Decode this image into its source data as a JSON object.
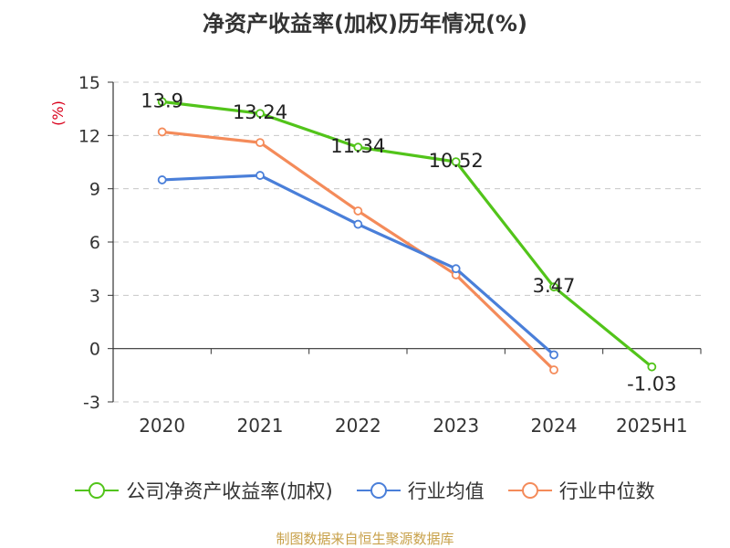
{
  "chart_data": {
    "type": "line",
    "title": "净资产收益率(加权)历年情况(%)",
    "ylabel": "(%)",
    "xlabel": "",
    "categories": [
      "2020",
      "2021",
      "2022",
      "2023",
      "2024",
      "2025H1"
    ],
    "ylim": [
      -3,
      15
    ],
    "yticks": [
      -3,
      0,
      3,
      6,
      9,
      12,
      15
    ],
    "grid": true,
    "legend_position": "bottom",
    "series": [
      {
        "name": "公司净资产收益率(加权)",
        "color": "#52c41a",
        "values": [
          13.9,
          13.24,
          11.34,
          10.52,
          3.47,
          -1.03
        ],
        "labels": [
          "13.9",
          "13.24",
          "11.34",
          "10.52",
          "3.47",
          "-1.03"
        ]
      },
      {
        "name": "行业均值",
        "color": "#4a7fd9",
        "values": [
          9.5,
          9.75,
          7.0,
          4.5,
          -0.35,
          null
        ]
      },
      {
        "name": "行业中位数",
        "color": "#f48b5a",
        "values": [
          12.2,
          11.6,
          7.75,
          4.15,
          -1.2,
          null
        ]
      }
    ]
  },
  "source": "制图数据来自恒生聚源数据库"
}
